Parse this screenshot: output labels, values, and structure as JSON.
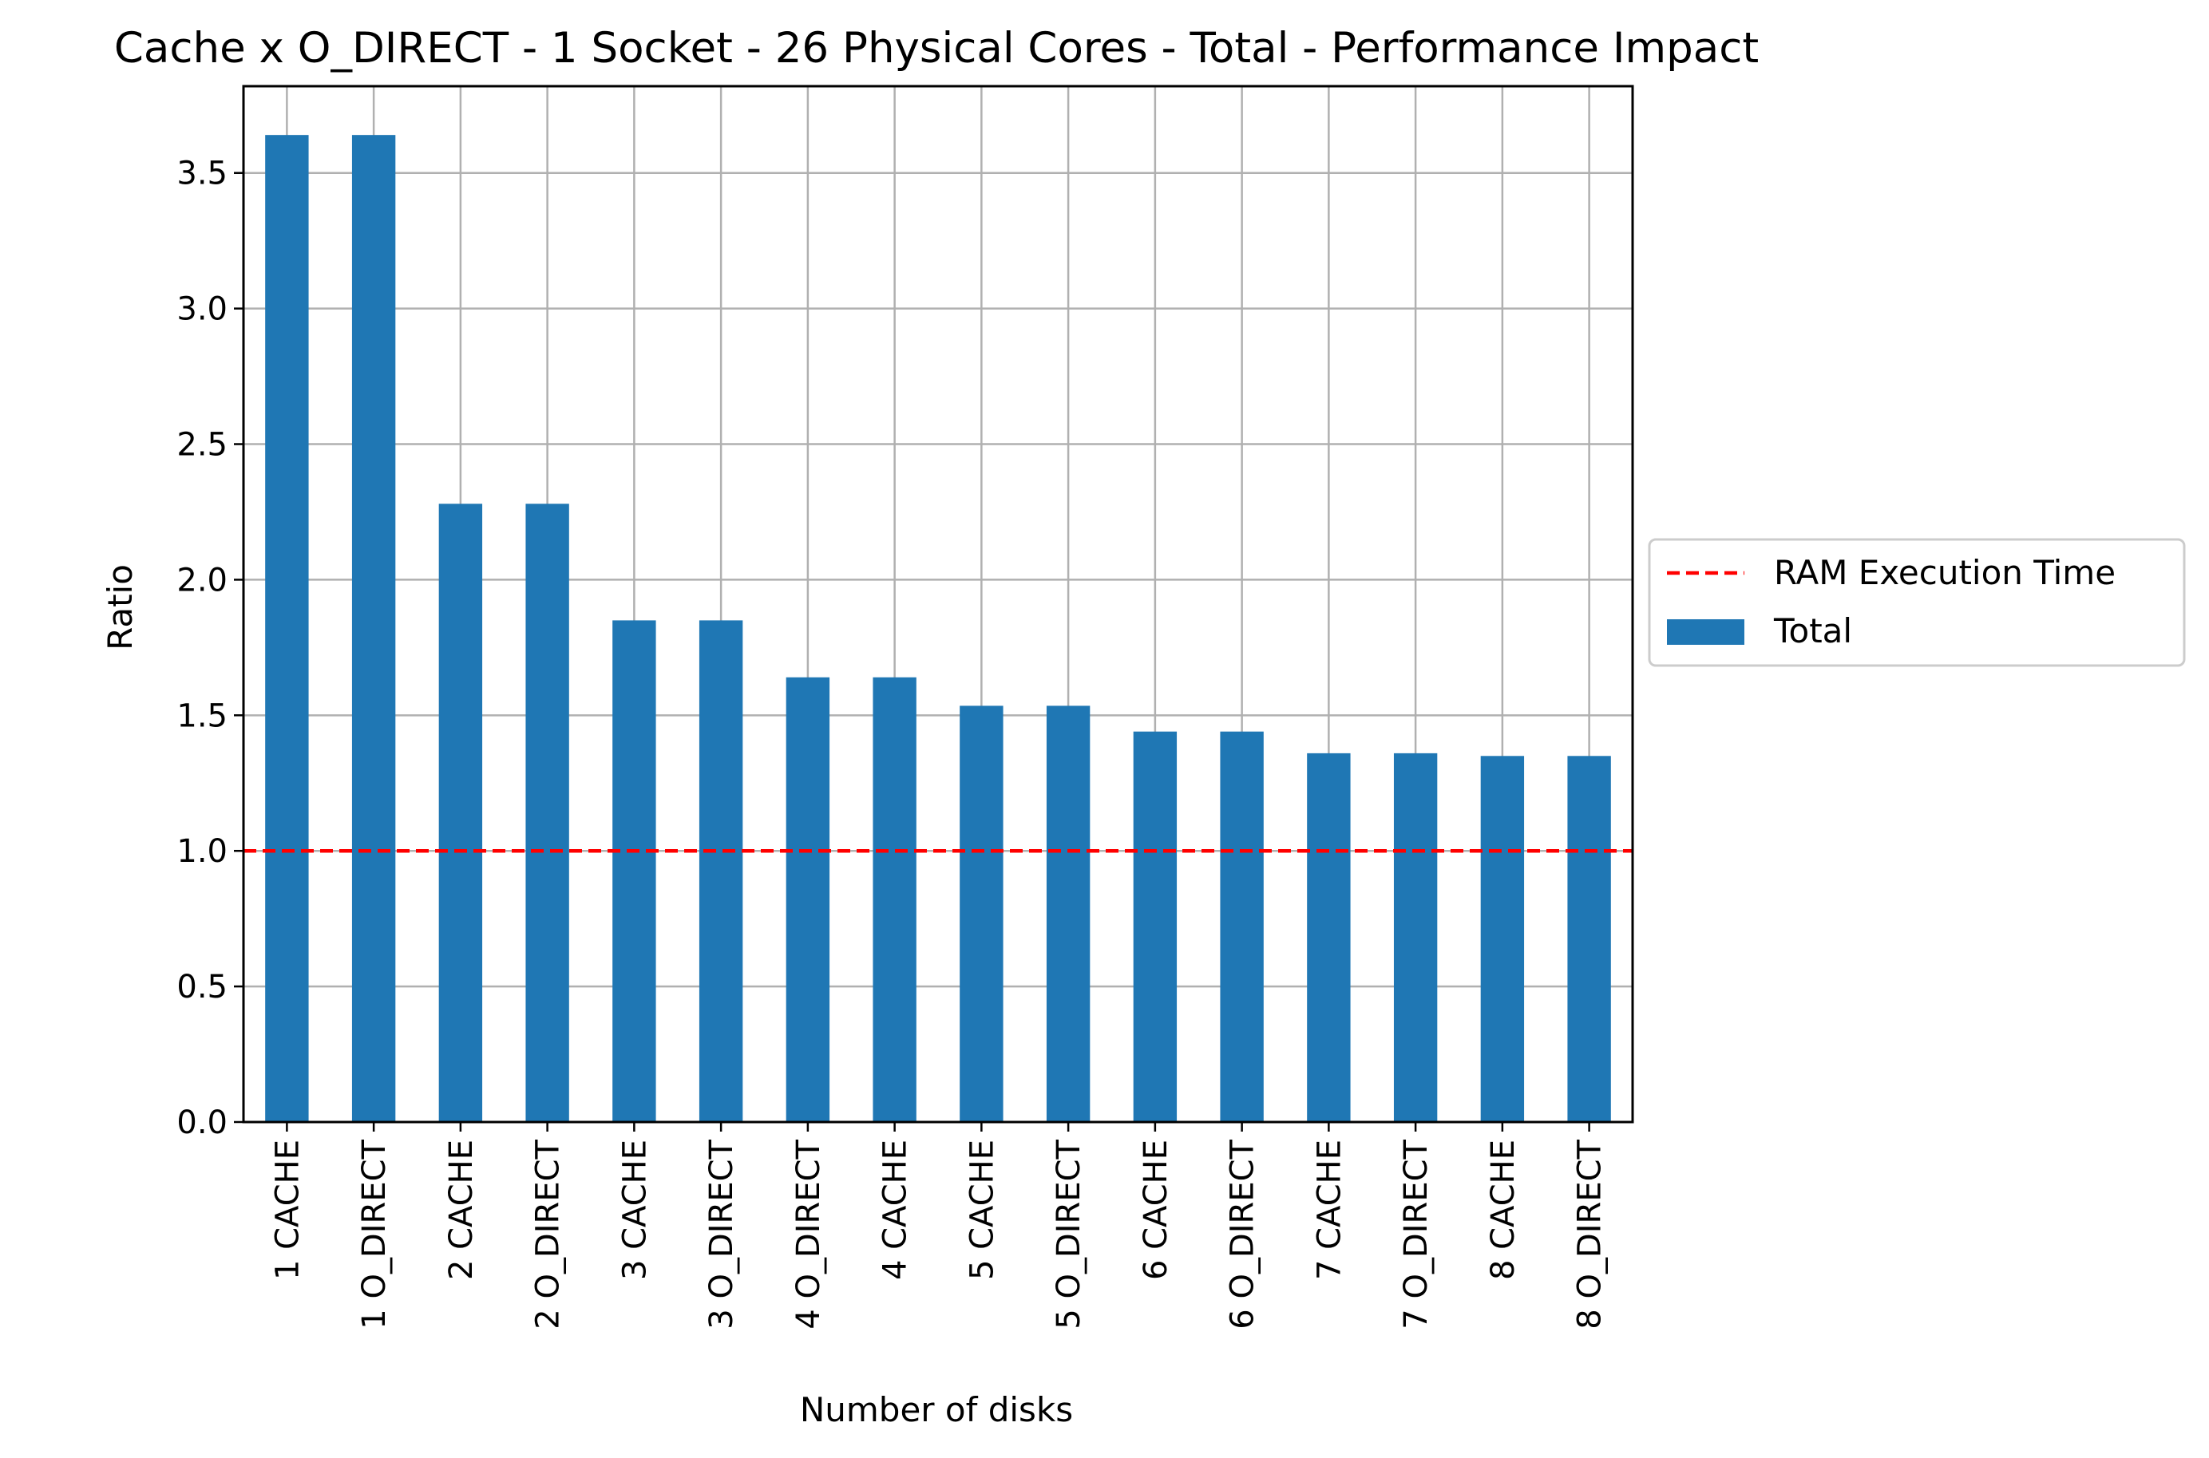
{
  "chart_data": {
    "type": "bar",
    "title": "Cache x O_DIRECT - 1 Socket - 26 Physical Cores - Total - Performance Impact",
    "xlabel": "Number of disks",
    "ylabel": "Ratio",
    "ylim": [
      0,
      3.82
    ],
    "yticks": [
      "0.0",
      "0.5",
      "1.0",
      "1.5",
      "2.0",
      "2.5",
      "3.0",
      "3.5"
    ],
    "grid": true,
    "legend_position": "right, outside plot",
    "categories": [
      "1 CACHE",
      "1 O_DIRECT",
      "2 CACHE",
      "2 O_DIRECT",
      "3 CACHE",
      "3 O_DIRECT",
      "4 O_DIRECT",
      "4 CACHE",
      "5 CACHE",
      "5 O_DIRECT",
      "6 CACHE",
      "6 O_DIRECT",
      "7 CACHE",
      "7 O_DIRECT",
      "8 CACHE",
      "8 O_DIRECT"
    ],
    "series": [
      {
        "name": "Total",
        "color": "#1f77b4",
        "values": [
          3.64,
          3.64,
          2.28,
          2.28,
          1.85,
          1.85,
          1.64,
          1.64,
          1.535,
          1.535,
          1.44,
          1.44,
          1.36,
          1.36,
          1.35,
          1.35
        ]
      }
    ],
    "reference_line": {
      "name": "RAM Execution Time",
      "value": 1.0,
      "color": "#ff0000",
      "style": "dashed"
    }
  }
}
